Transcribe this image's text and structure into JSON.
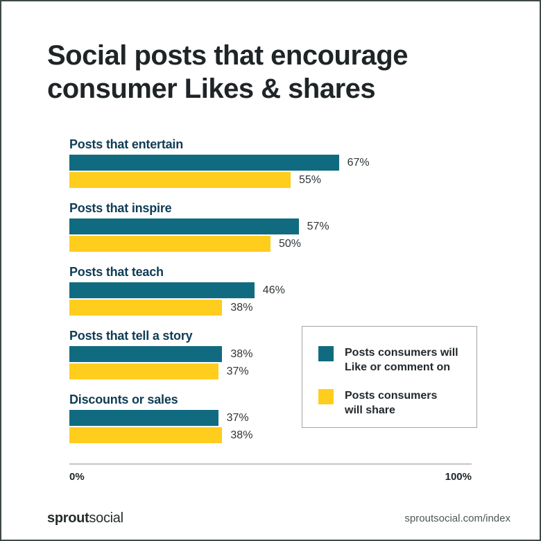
{
  "header": {
    "title_line1": "Social posts that encourage",
    "title_line2": "consumer Likes & shares"
  },
  "chart_data": {
    "type": "bar",
    "orientation": "horizontal",
    "title": "Social posts that encourage consumer Likes & shares",
    "categories": [
      "Posts that entertain",
      "Posts that inspire",
      "Posts that teach",
      "Posts that tell a story",
      "Discounts or sales"
    ],
    "series": [
      {
        "name": "Posts consumers will Like or comment on",
        "color": "#116b80",
        "values": [
          67,
          57,
          46,
          38,
          37
        ]
      },
      {
        "name": "Posts consumers will share",
        "color": "#ffcd1e",
        "values": [
          55,
          50,
          38,
          37,
          38
        ]
      }
    ],
    "value_suffix": "%",
    "xlim": [
      0,
      100
    ],
    "x_axis_ticks": [
      "0%",
      "100%"
    ],
    "grid": false,
    "legend_position": "right-middle"
  },
  "legend": {
    "items": [
      {
        "label": "Posts consumers will\nLike or comment on",
        "color": "#116b80"
      },
      {
        "label": "Posts consumers\nwill share",
        "color": "#ffcd1e"
      }
    ]
  },
  "footer": {
    "brand_bold": "sprout",
    "brand_regular": "social",
    "url": "sproutsocial.com/index"
  },
  "colors": {
    "teal": "#116b80",
    "yellow": "#ffcd1e",
    "title_text": "#1f2527",
    "category_text": "#0f3c55",
    "axis_line": "#c5c5c5",
    "frame_border": "#3f4845"
  }
}
